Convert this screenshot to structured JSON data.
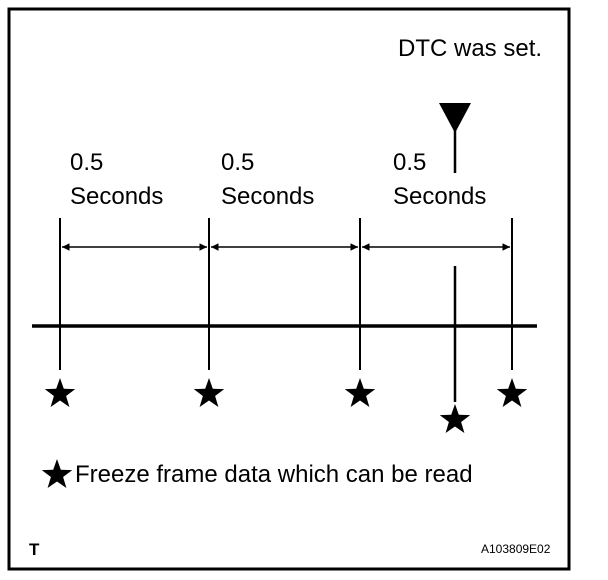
{
  "dtc_label": "DTC was set.",
  "intervals": [
    {
      "value": "0.5",
      "unit": "Seconds"
    },
    {
      "value": "0.5",
      "unit": "Seconds"
    },
    {
      "value": "0.5",
      "unit": "Seconds"
    }
  ],
  "legend": {
    "icon": "star-icon",
    "text": "Freeze frame data which can be read"
  },
  "corner_mark": "T",
  "figure_code": "A103809E02",
  "colors": {
    "ink": "#000000",
    "background": "#ffffff"
  }
}
